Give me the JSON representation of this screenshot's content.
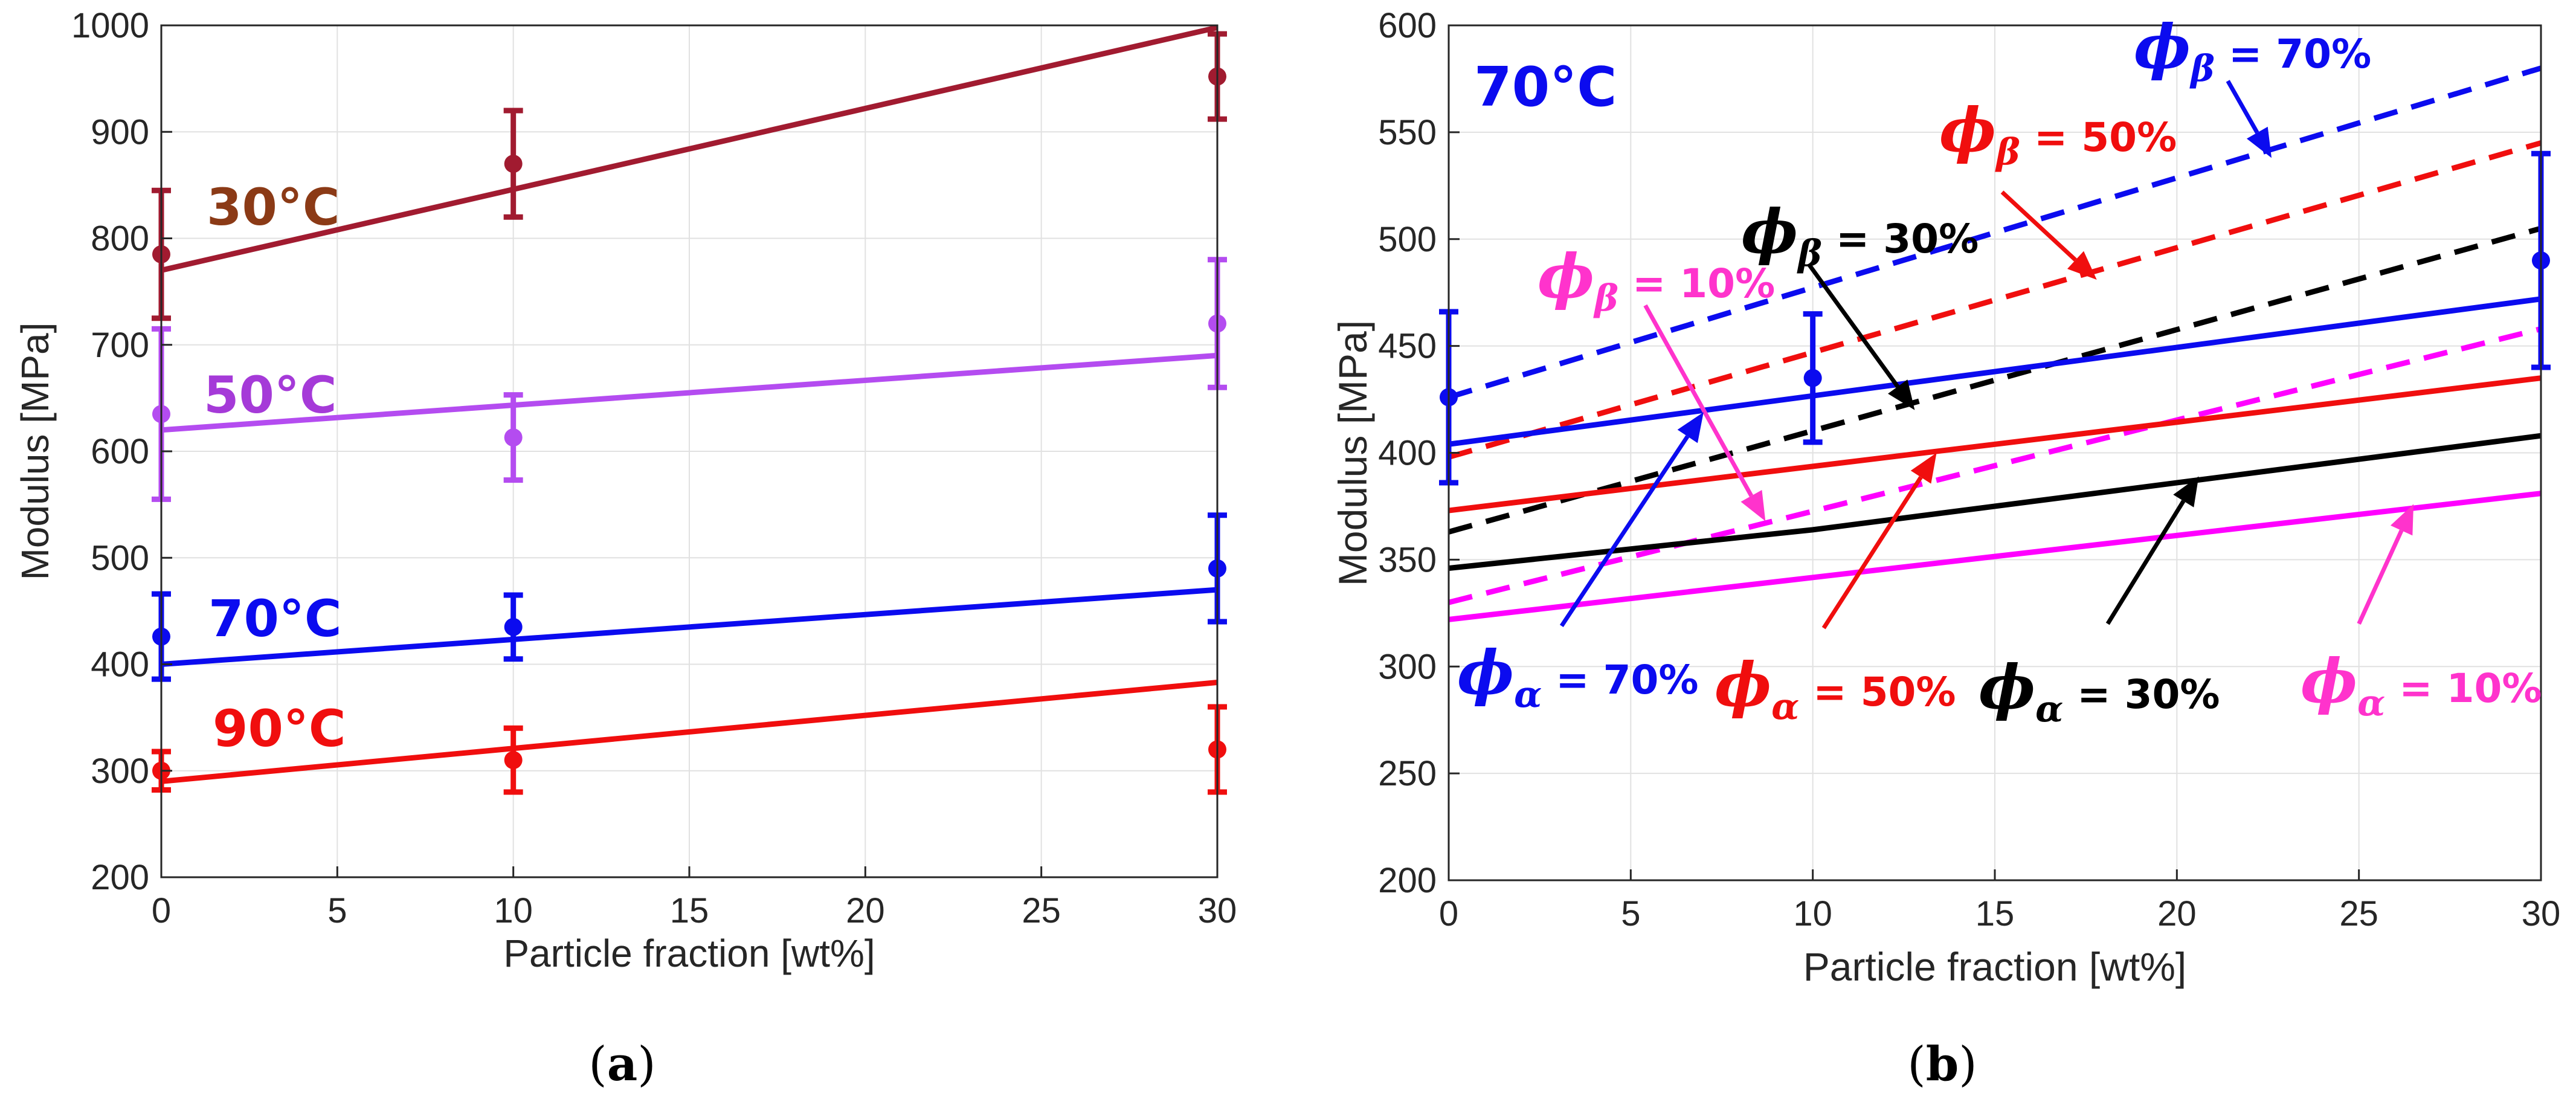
{
  "colors": {
    "c30": "#a11b30",
    "c30_text": "#8b3a16",
    "c50": "#b44cf0",
    "c50_text": "#a53ad8",
    "c70": "#0b0bef",
    "c90": "#f00e0e",
    "black": "#000000",
    "magenta": "#ff00ff",
    "pink_arrow": "#ff33cc",
    "grid": "#e1e1e1",
    "axis": "#262626"
  },
  "chart_data": [
    {
      "id": "a",
      "type": "line",
      "caption": "(a)",
      "caption_letter": "a",
      "xlabel": "Particle fraction [wt%]",
      "ylabel": "Modulus [MPa]",
      "xlim": [
        0,
        30
      ],
      "ylim": [
        200,
        1000
      ],
      "xticks": [
        0,
        5,
        10,
        15,
        20,
        25,
        30
      ],
      "yticks": [
        200,
        300,
        400,
        500,
        600,
        700,
        800,
        900,
        1000
      ],
      "grid": true,
      "series": [
        {
          "key": "t30",
          "label": "30°C",
          "color": "#a11b30",
          "label_color": "#8b3a16",
          "points": [
            {
              "x": 0,
              "y": 785,
              "err_low": 725,
              "err_high": 845
            },
            {
              "x": 10,
              "y": 870,
              "err_low": 820,
              "err_high": 920
            },
            {
              "x": 30,
              "y": 952,
              "err_low": 912,
              "err_high": 992
            }
          ],
          "fit": [
            [
              0,
              770
            ],
            [
              30,
              998
            ]
          ]
        },
        {
          "key": "t50",
          "label": "50°C",
          "color": "#b44cf0",
          "label_color": "#a53ad8",
          "points": [
            {
              "x": 0,
              "y": 635,
              "err_low": 555,
              "err_high": 715
            },
            {
              "x": 10,
              "y": 613,
              "err_low": 573,
              "err_high": 653
            },
            {
              "x": 30,
              "y": 720,
              "err_low": 660,
              "err_high": 780
            }
          ],
          "fit": [
            [
              0,
              620
            ],
            [
              30,
              690
            ]
          ]
        },
        {
          "key": "t70",
          "label": "70°C",
          "color": "#0b0bef",
          "label_color": "#0b0bef",
          "points": [
            {
              "x": 0,
              "y": 426,
              "err_low": 386,
              "err_high": 466
            },
            {
              "x": 10,
              "y": 435,
              "err_low": 405,
              "err_high": 465
            },
            {
              "x": 30,
              "y": 490,
              "err_low": 440,
              "err_high": 540
            }
          ],
          "fit": [
            [
              0,
              400
            ],
            [
              30,
              470
            ]
          ]
        },
        {
          "key": "t90",
          "label": "90°C",
          "color": "#f00e0e",
          "label_color": "#f00e0e",
          "points": [
            {
              "x": 0,
              "y": 300,
              "err_low": 282,
              "err_high": 318
            },
            {
              "x": 10,
              "y": 310,
              "err_low": 280,
              "err_high": 340
            },
            {
              "x": 30,
              "y": 320,
              "err_low": 280,
              "err_high": 360
            }
          ],
          "fit": [
            [
              0,
              290
            ],
            [
              30,
              383
            ]
          ]
        }
      ]
    },
    {
      "id": "b",
      "type": "line",
      "caption": "(b)",
      "caption_letter": "b",
      "xlabel": "Particle fraction [wt%]",
      "ylabel": "Modulus [MPa]",
      "xlim": [
        0,
        30
      ],
      "ylim": [
        200,
        600
      ],
      "xticks": [
        0,
        5,
        10,
        15,
        20,
        25,
        30
      ],
      "yticks": [
        200,
        250,
        300,
        350,
        400,
        450,
        500,
        550,
        600
      ],
      "grid": true,
      "title_annotation": "70°C",
      "measured": {
        "color": "#0b0bef",
        "points": [
          {
            "x": 0,
            "y": 426,
            "err_low": 386,
            "err_high": 466
          },
          {
            "x": 10,
            "y": 435,
            "err_low": 405,
            "err_high": 465
          },
          {
            "x": 30,
            "y": 490,
            "err_low": 440,
            "err_high": 540
          }
        ]
      },
      "series": [
        {
          "name": "phi_beta_70",
          "phase": "β",
          "fraction": "70%",
          "style": "dashed",
          "color": "#0b0bef",
          "x": [
            0,
            30
          ],
          "y": [
            426,
            580
          ]
        },
        {
          "name": "phi_beta_50",
          "phase": "β",
          "fraction": "50%",
          "style": "dashed",
          "color": "#f00e0e",
          "x": [
            0,
            30
          ],
          "y": [
            398,
            545
          ]
        },
        {
          "name": "phi_beta_30",
          "phase": "β",
          "fraction": "30%",
          "style": "dashed",
          "color": "#000000",
          "x": [
            0,
            30
          ],
          "y": [
            363,
            505
          ]
        },
        {
          "name": "phi_beta_10",
          "phase": "β",
          "fraction": "10%",
          "style": "dashed",
          "color": "#ff00ff",
          "x": [
            0,
            30
          ],
          "y": [
            330,
            458
          ]
        },
        {
          "name": "phi_alpha_70",
          "phase": "α",
          "fraction": "70%",
          "style": "solid",
          "color": "#0b0bef",
          "x": [
            0,
            30
          ],
          "y": [
            404,
            472
          ]
        },
        {
          "name": "phi_alpha_50",
          "phase": "α",
          "fraction": "50%",
          "style": "solid",
          "color": "#f00e0e",
          "x": [
            0,
            30
          ],
          "y": [
            373,
            435
          ]
        },
        {
          "name": "phi_alpha_30",
          "phase": "α",
          "fraction": "30%",
          "style": "solid",
          "color": "#000000",
          "x": [
            0,
            10,
            30
          ],
          "y": [
            346,
            364,
            408
          ]
        },
        {
          "name": "phi_alpha_10",
          "phase": "α",
          "fraction": "10%",
          "style": "solid",
          "color": "#ff00ff",
          "x": [
            0,
            30
          ],
          "y": [
            322,
            381
          ]
        }
      ],
      "labels": [
        {
          "key": "b70",
          "symbol": "ϕ",
          "sub": "β",
          "rest": " = 70%",
          "color": "#0b0bef",
          "arrow": {
            "from": [
              21.4,
              574
            ],
            "to": [
              22.6,
              538
            ]
          }
        },
        {
          "key": "b50",
          "symbol": "ϕ",
          "sub": "β",
          "rest": " = 50%",
          "color": "#f00e0e",
          "arrow": {
            "from": [
              15.2,
              522
            ],
            "to": [
              17.8,
              481
            ]
          }
        },
        {
          "key": "b30",
          "symbol": "ϕ",
          "sub": "β",
          "rest": " = 30%",
          "color": "#000000",
          "arrow": {
            "from": [
              9.9,
              488
            ],
            "to": [
              12.8,
              420
            ]
          }
        },
        {
          "key": "b10",
          "symbol": "ϕ",
          "sub": "β",
          "rest": " = 10%",
          "color": "#ff00ff",
          "label_color": "#ff33cc",
          "arrow": {
            "from": [
              5.4,
              469
            ],
            "to": [
              8.7,
              368
            ]
          }
        },
        {
          "key": "a70",
          "symbol": "ϕ",
          "sub": "α",
          "rest": " = 70%",
          "color": "#0b0bef",
          "arrow": {
            "from": [
              3.1,
              319
            ],
            "to": [
              7.0,
              419
            ]
          }
        },
        {
          "key": "a50",
          "symbol": "ϕ",
          "sub": "α",
          "rest": " = 50%",
          "color": "#f00e0e",
          "arrow": {
            "from": [
              10.3,
              318
            ],
            "to": [
              13.4,
              400
            ]
          }
        },
        {
          "key": "a30",
          "symbol": "ϕ",
          "sub": "α",
          "rest": " = 30%",
          "color": "#000000",
          "arrow": {
            "from": [
              18.1,
              320
            ],
            "to": [
              20.6,
              389
            ]
          }
        },
        {
          "key": "a10",
          "symbol": "ϕ",
          "sub": "α",
          "rest": " = 10%",
          "color": "#ff00ff",
          "label_color": "#ff33cc",
          "arrow": {
            "from": [
              25.0,
              320
            ],
            "to": [
              26.5,
              376
            ]
          }
        }
      ]
    }
  ]
}
